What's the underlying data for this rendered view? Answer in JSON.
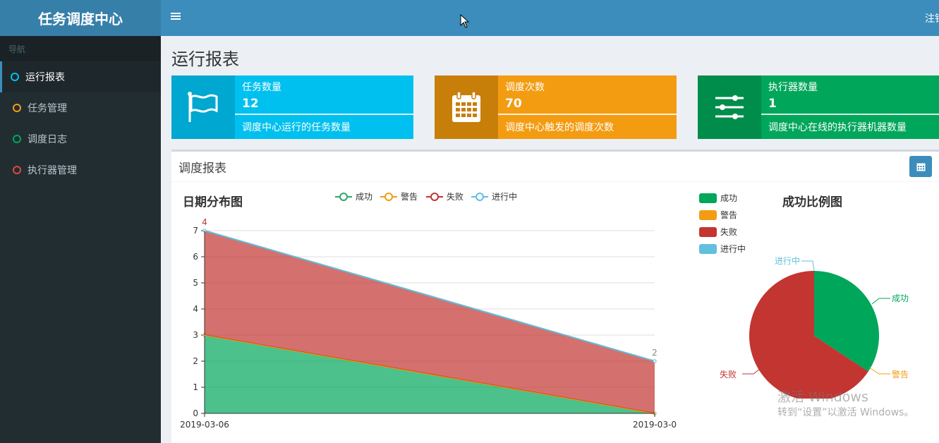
{
  "app": {
    "logo": "任务调度中心",
    "logout": "注销"
  },
  "sidebar": {
    "header": "导航",
    "items": [
      {
        "label": "运行报表",
        "color": "#00c0ef"
      },
      {
        "label": "任务管理",
        "color": "#f39c12"
      },
      {
        "label": "调度日志",
        "color": "#00a65a"
      },
      {
        "label": "执行器管理",
        "color": "#dd4b39"
      }
    ]
  },
  "page": {
    "title": "运行报表"
  },
  "info_boxes": [
    {
      "label": "任务数量",
      "number": "12",
      "desc": "调度中心运行的任务数量",
      "icon": "flag-icon",
      "color": "#00c0ef",
      "icon_bg": "#00a7d0"
    },
    {
      "label": "调度次数",
      "number": "70",
      "desc": "调度中心触发的调度次数",
      "icon": "calendar-icon",
      "color": "#f39c12",
      "icon_bg": "#c87f0a"
    },
    {
      "label": "执行器数量",
      "number": "1",
      "desc": "调度中心在线的执行器机器数量",
      "icon": "sliders-icon",
      "color": "#00a65a",
      "icon_bg": "#008d4c"
    }
  ],
  "report": {
    "title": "调度报表"
  },
  "chart_data": [
    {
      "type": "area",
      "title": "日期分布图",
      "x": [
        "2019-03-06",
        "2019-03-0"
      ],
      "ylim": [
        0,
        7
      ],
      "yticks": [
        0,
        1,
        2,
        3,
        4,
        5,
        6,
        7
      ],
      "stacked": true,
      "legend_position": "top",
      "series": [
        {
          "name": "成功",
          "values": [
            3,
            0
          ],
          "color": "#00a65a"
        },
        {
          "name": "警告",
          "values": [
            0,
            0
          ],
          "color": "#f39c12"
        },
        {
          "name": "失败",
          "values": [
            4,
            2
          ],
          "color": "#c23531"
        },
        {
          "name": "进行中",
          "values": [
            0,
            0
          ],
          "color": "#60c0dd"
        }
      ],
      "top_labels": [
        "4",
        "2"
      ]
    },
    {
      "type": "pie",
      "title": "成功比例图",
      "legend_position": "left",
      "slices": [
        {
          "name": "成功",
          "value": 24,
          "color": "#00a65a"
        },
        {
          "name": "警告",
          "value": 0,
          "color": "#f39c12"
        },
        {
          "name": "失败",
          "value": 46,
          "color": "#c23531"
        },
        {
          "name": "进行中",
          "value": 0,
          "color": "#60c0dd"
        }
      ]
    }
  ],
  "watermark": {
    "line1": "激活 Windows",
    "line2": "转到“设置”以激活 Windows。"
  }
}
